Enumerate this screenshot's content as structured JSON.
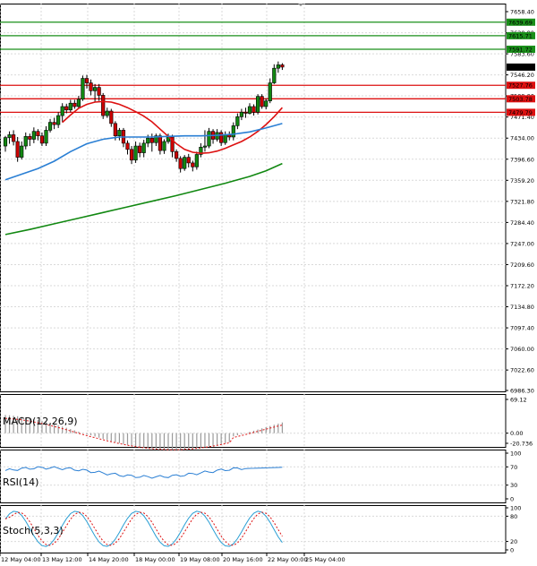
{
  "chart_data": {
    "type": "candlestick",
    "main": {
      "y_ticks": [
        "7658.40",
        "7620.80",
        "7583.60",
        "7546.20",
        "7509.00",
        "7471.40",
        "7434.00",
        "7396.60",
        "7359.20",
        "7321.80",
        "7284.40",
        "7247.00",
        "7209.60",
        "7172.20",
        "7134.80",
        "7097.40",
        "7060.00",
        "7022.60",
        "6986.30"
      ],
      "ylim": [
        6986.3,
        7658.4
      ],
      "current_price": "7560.00",
      "horizontal_levels": [
        {
          "value": 7639.69,
          "label": "7639.69",
          "kind": "resistance",
          "color": "#1a8f1a"
        },
        {
          "value": 7615.71,
          "label": "7615.71",
          "kind": "resistance",
          "color": "#1a8f1a"
        },
        {
          "value": 7591.72,
          "label": "7591.72",
          "kind": "resistance",
          "color": "#1a8f1a"
        },
        {
          "value": 7527.76,
          "label": "7527.76",
          "kind": "support",
          "color": "#dd1111"
        },
        {
          "value": 7503.78,
          "label": "7503.78",
          "kind": "support",
          "color": "#dd1111"
        },
        {
          "value": 7479.79,
          "label": "7479.79",
          "kind": "support",
          "color": "#dd1111"
        }
      ],
      "candles": [
        [
          7420,
          7435,
          7410,
          7438
        ],
        [
          7435,
          7440,
          7424,
          7446
        ],
        [
          7440,
          7428,
          7421,
          7448
        ],
        [
          7428,
          7400,
          7392,
          7436
        ],
        [
          7400,
          7420,
          7396,
          7428
        ],
        [
          7420,
          7437,
          7414,
          7444
        ],
        [
          7437,
          7432,
          7420,
          7442
        ],
        [
          7432,
          7446,
          7425,
          7453
        ],
        [
          7446,
          7438,
          7430,
          7450
        ],
        [
          7438,
          7425,
          7420,
          7444
        ],
        [
          7425,
          7448,
          7420,
          7455
        ],
        [
          7448,
          7462,
          7444,
          7468
        ],
        [
          7462,
          7458,
          7450,
          7470
        ],
        [
          7458,
          7474,
          7452,
          7480
        ],
        [
          7474,
          7490,
          7462,
          7496
        ],
        [
          7490,
          7484,
          7478,
          7495
        ],
        [
          7484,
          7496,
          7480,
          7502
        ],
        [
          7496,
          7490,
          7486,
          7502
        ],
        [
          7490,
          7503,
          7486,
          7509
        ],
        [
          7503,
          7540,
          7500,
          7545
        ],
        [
          7540,
          7532,
          7522,
          7546
        ],
        [
          7532,
          7518,
          7510,
          7538
        ],
        [
          7518,
          7524,
          7498,
          7530
        ],
        [
          7524,
          7510,
          7500,
          7530
        ],
        [
          7510,
          7474,
          7468,
          7514
        ],
        [
          7474,
          7482,
          7470,
          7488
        ],
        [
          7482,
          7460,
          7454,
          7486
        ],
        [
          7460,
          7438,
          7430,
          7464
        ],
        [
          7438,
          7448,
          7430,
          7452
        ],
        [
          7448,
          7425,
          7418,
          7452
        ],
        [
          7425,
          7414,
          7405,
          7430
        ],
        [
          7414,
          7395,
          7388,
          7420
        ],
        [
          7395,
          7420,
          7390,
          7428
        ],
        [
          7420,
          7408,
          7400,
          7426
        ],
        [
          7408,
          7425,
          7400,
          7431
        ],
        [
          7425,
          7434,
          7418,
          7440
        ],
        [
          7434,
          7426,
          7410,
          7442
        ],
        [
          7426,
          7438,
          7420,
          7442
        ],
        [
          7438,
          7412,
          7405,
          7442
        ],
        [
          7412,
          7428,
          7406,
          7432
        ],
        [
          7428,
          7436,
          7424,
          7442
        ],
        [
          7436,
          7410,
          7400,
          7440
        ],
        [
          7410,
          7398,
          7392,
          7414
        ],
        [
          7398,
          7380,
          7373,
          7402
        ],
        [
          7380,
          7400,
          7376,
          7404
        ],
        [
          7400,
          7390,
          7382,
          7406
        ],
        [
          7390,
          7383,
          7375,
          7394
        ],
        [
          7383,
          7405,
          7378,
          7410
        ],
        [
          7405,
          7418,
          7400,
          7425
        ],
        [
          7418,
          7420,
          7410,
          7448
        ],
        [
          7420,
          7446,
          7416,
          7452
        ],
        [
          7446,
          7432,
          7424,
          7450
        ],
        [
          7432,
          7444,
          7428,
          7450
        ],
        [
          7444,
          7426,
          7420,
          7448
        ],
        [
          7426,
          7440,
          7422,
          7446
        ],
        [
          7440,
          7436,
          7430,
          7446
        ],
        [
          7436,
          7456,
          7430,
          7462
        ],
        [
          7456,
          7472,
          7450,
          7478
        ],
        [
          7472,
          7480,
          7466,
          7486
        ],
        [
          7480,
          7478,
          7470,
          7488
        ],
        [
          7478,
          7490,
          7476,
          7496
        ],
        [
          7490,
          7480,
          7474,
          7494
        ],
        [
          7480,
          7508,
          7476,
          7512
        ],
        [
          7508,
          7490,
          7486,
          7512
        ],
        [
          7490,
          7500,
          7485,
          7504
        ],
        [
          7500,
          7532,
          7496,
          7540
        ],
        [
          7532,
          7558,
          7530,
          7565
        ],
        [
          7558,
          7564,
          7550,
          7570
        ],
        [
          7564,
          7560,
          7555,
          7567
        ]
      ],
      "moving_averages": [
        {
          "color": "#dd1111",
          "values": [
            [
              0,
              null
            ],
            [
              14,
              7462
            ],
            [
              16,
              7475
            ],
            [
              18,
              7487
            ],
            [
              20,
              7494
            ],
            [
              22,
              7498
            ],
            [
              24,
              7499
            ],
            [
              26,
              7498
            ],
            [
              28,
              7494
            ],
            [
              30,
              7488
            ],
            [
              32,
              7481
            ],
            [
              34,
              7473
            ],
            [
              36,
              7463
            ],
            [
              38,
              7450
            ],
            [
              40,
              7437
            ],
            [
              42,
              7424
            ],
            [
              44,
              7414
            ],
            [
              46,
              7409
            ],
            [
              48,
              7407
            ],
            [
              50,
              7408
            ],
            [
              52,
              7411
            ],
            [
              54,
              7416
            ],
            [
              56,
              7422
            ],
            [
              58,
              7428
            ],
            [
              60,
              7436
            ],
            [
              62,
              7446
            ],
            [
              64,
              7458
            ],
            [
              66,
              7472
            ],
            [
              68,
              7488
            ]
          ]
        },
        {
          "color": "#2a7fd4",
          "values": [
            [
              0,
              7360
            ],
            [
              4,
              7370
            ],
            [
              8,
              7380
            ],
            [
              12,
              7393
            ],
            [
              16,
              7410
            ],
            [
              20,
              7424
            ],
            [
              24,
              7432
            ],
            [
              28,
              7436
            ],
            [
              32,
              7436
            ],
            [
              36,
              7436
            ],
            [
              40,
              7437
            ],
            [
              44,
              7438
            ],
            [
              48,
              7438
            ],
            [
              52,
              7439
            ],
            [
              56,
              7441
            ],
            [
              60,
              7445
            ],
            [
              64,
              7452
            ],
            [
              68,
              7460
            ]
          ]
        },
        {
          "color": "#118811",
          "values": [
            [
              0,
              7263
            ],
            [
              6,
              7272
            ],
            [
              12,
              7282
            ],
            [
              18,
              7292
            ],
            [
              24,
              7302
            ],
            [
              30,
              7312
            ],
            [
              36,
              7322
            ],
            [
              42,
              7332
            ],
            [
              48,
              7343
            ],
            [
              54,
              7354
            ],
            [
              60,
              7366
            ],
            [
              64,
              7376
            ],
            [
              68,
              7389
            ]
          ]
        }
      ]
    },
    "x_ticks": [
      "12 May 04:00",
      "13 May 12:00",
      "14 May 20:00",
      "18 May 00:00",
      "19 May 08:00",
      "20 May 16:00",
      "22 May 00:00",
      "25 May 04:00"
    ],
    "macd": {
      "label": "MACD(12,26,9)",
      "y_ticks": [
        "69.12",
        "0.00",
        "-20.736"
      ],
      "ylim": [
        -20.736,
        69.12
      ]
    },
    "rsi": {
      "label": "RSI(14)",
      "y_ticks": [
        "100",
        "70",
        "30",
        "0"
      ],
      "ylim": [
        0,
        100
      ]
    },
    "stoch": {
      "label": "Stoch(5,3,3)",
      "y_ticks": [
        "100",
        "80",
        "20",
        "0"
      ],
      "ylim": [
        0,
        100
      ]
    },
    "colors": {
      "grid": "#d9d9d9",
      "bull": "#118811",
      "bear": "#cc0000",
      "macd_signal": "#dd1111",
      "rsi_line": "#2a7fd4",
      "stoch_main": "#2a9fd4",
      "stoch_signal": "#dd1111"
    }
  }
}
